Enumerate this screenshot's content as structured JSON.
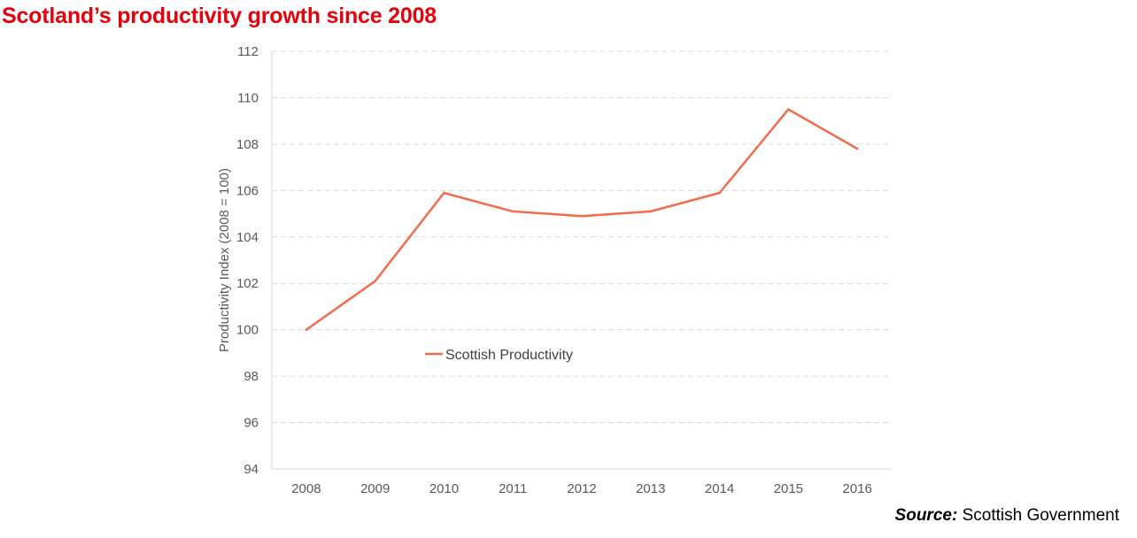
{
  "header": {
    "title": "Scotland’s productivity growth since 2008"
  },
  "source": {
    "label": "Source:",
    "text": "Scottish Government"
  },
  "chart_data": {
    "type": "line",
    "title": "Scotland’s productivity growth since 2008",
    "xlabel": "",
    "ylabel": "Productivity Index (2008 = 100)",
    "categories": [
      "2008",
      "2009",
      "2010",
      "2011",
      "2012",
      "2013",
      "2014",
      "2015",
      "2016"
    ],
    "series": [
      {
        "name": "Scottish Productivity",
        "values": [
          100.0,
          102.1,
          105.9,
          105.1,
          104.9,
          105.1,
          105.9,
          109.5,
          107.8
        ],
        "color": "#f26b4a"
      }
    ],
    "ylim": [
      94,
      112
    ],
    "yticks": [
      94,
      96,
      98,
      100,
      102,
      104,
      106,
      108,
      110,
      112
    ],
    "grid": true,
    "legend_position": "inside-left"
  }
}
